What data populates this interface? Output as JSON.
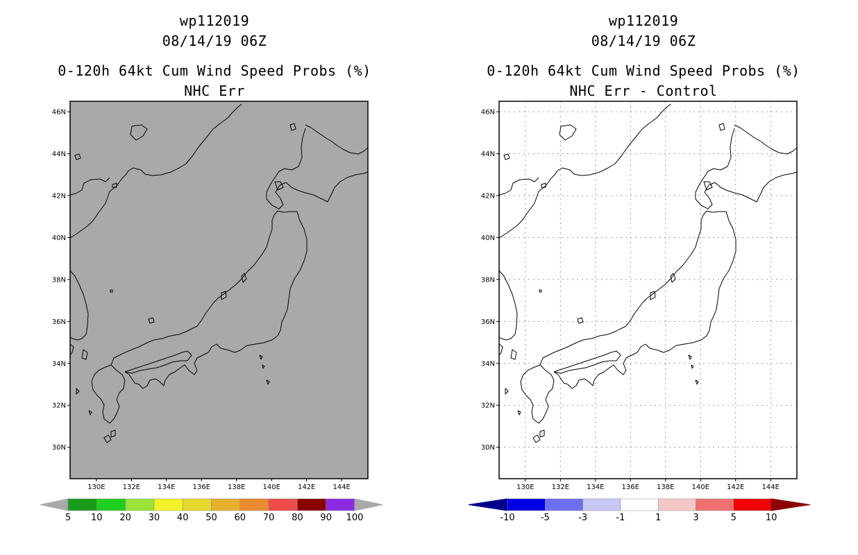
{
  "panels": [
    {
      "id": "left",
      "storm_id": "wp112019",
      "datetime": "08/14/19 06Z",
      "product": "0-120h 64kt Cum Wind Speed Probs (%)",
      "subtitle": "NHC Err",
      "map_fill": "#a9a9a9",
      "gridlines": false,
      "colorbar": {
        "labels": [
          "5",
          "10",
          "20",
          "30",
          "40",
          "50",
          "60",
          "70",
          "80",
          "90",
          "100"
        ],
        "colors": [
          "#1a9b1a",
          "#1fcf1f",
          "#9ae43a",
          "#f2f229",
          "#e6d82e",
          "#e6b02e",
          "#eb8a2e",
          "#ef4b4b",
          "#8b0000",
          "#8a2be2"
        ],
        "left_cap": "#a9a9a9",
        "right_cap": "#a9a9a9"
      }
    },
    {
      "id": "right",
      "storm_id": "wp112019",
      "datetime": "08/14/19 06Z",
      "product": "0-120h 64kt Cum Wind Speed Probs (%)",
      "subtitle": "NHC Err - Control",
      "map_fill": "#ffffff",
      "gridlines": true,
      "colorbar": {
        "labels": [
          "-10",
          "-5",
          "-3",
          "-1",
          "1",
          "3",
          "5",
          "10"
        ],
        "colors": [
          "#0000e6",
          "#6e6ef0",
          "#c8c8f5",
          "#ffffff",
          "#f5c8c8",
          "#f07070",
          "#f00000"
        ],
        "left_cap": "#00008b",
        "right_cap": "#8b0000"
      }
    }
  ],
  "axes": {
    "lon_labels": [
      "130E",
      "132E",
      "134E",
      "136E",
      "138E",
      "140E",
      "142E",
      "144E"
    ],
    "lat_labels": [
      "46N",
      "44N",
      "42N",
      "40N",
      "38N",
      "36N",
      "34N",
      "32N",
      "30N"
    ],
    "lon_range": [
      128.5,
      145.5
    ],
    "lat_range": [
      28.5,
      46.5
    ]
  }
}
